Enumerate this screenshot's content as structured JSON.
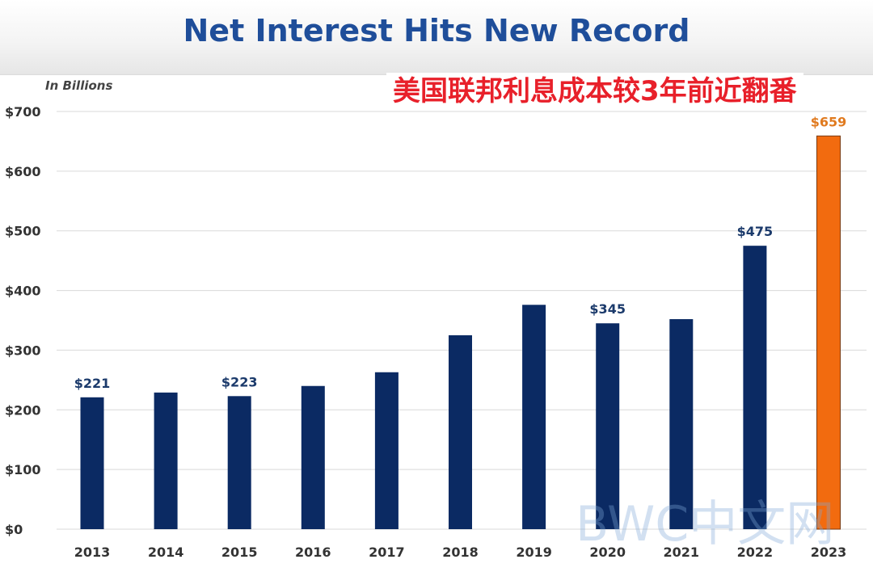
{
  "title": "Net Interest Hits New Record",
  "annotation": "美国联邦利息成本较3年前近翻番",
  "watermark": "BWC中文网",
  "chart_data": {
    "type": "bar",
    "unit_label": "In Billions",
    "categories": [
      "2013",
      "2014",
      "2015",
      "2016",
      "2017",
      "2018",
      "2019",
      "2020",
      "2021",
      "2022",
      "2023"
    ],
    "values": [
      221,
      229,
      223,
      240,
      263,
      325,
      376,
      345,
      352,
      475,
      659
    ],
    "data_labels": {
      "0": "$221",
      "2": "$223",
      "7": "$345",
      "9": "$475",
      "10": "$659"
    },
    "ylim": [
      0,
      700
    ],
    "yticks": [
      0,
      100,
      200,
      300,
      400,
      500,
      600,
      700
    ],
    "ytick_labels": [
      "$0",
      "$100",
      "$200",
      "$300",
      "$400",
      "$500",
      "$600",
      "$700"
    ],
    "grid": true,
    "colors": {
      "bar": "#0b2a63",
      "highlight_bar": "#f26b0f",
      "highlight_label": "#e07a1f",
      "label": "#1b3a6b",
      "grid": "#d9d9d9"
    },
    "highlight_index": 10
  }
}
